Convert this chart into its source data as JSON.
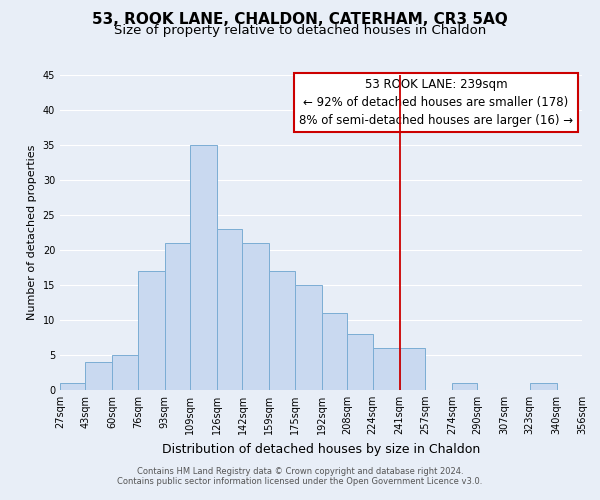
{
  "title": "53, ROOK LANE, CHALDON, CATERHAM, CR3 5AQ",
  "subtitle": "Size of property relative to detached houses in Chaldon",
  "xlabel": "Distribution of detached houses by size in Chaldon",
  "ylabel": "Number of detached properties",
  "bar_edges": [
    27,
    43,
    60,
    76,
    93,
    109,
    126,
    142,
    159,
    175,
    192,
    208,
    224,
    241,
    257,
    274,
    290,
    307,
    323,
    340,
    356
  ],
  "bar_heights": [
    1,
    4,
    5,
    17,
    21,
    35,
    23,
    21,
    17,
    15,
    11,
    8,
    6,
    6,
    0,
    1,
    0,
    0,
    1,
    0
  ],
  "bar_color": "#c9d9f0",
  "bar_edgecolor": "#7badd4",
  "vline_x": 241,
  "vline_color": "#cc0000",
  "annotation_title": "53 ROOK LANE: 239sqm",
  "annotation_line1": "← 92% of detached houses are smaller (178)",
  "annotation_line2": "8% of semi-detached houses are larger (16) →",
  "annotation_fontsize": 8.5,
  "tick_labels": [
    "27sqm",
    "43sqm",
    "60sqm",
    "76sqm",
    "93sqm",
    "109sqm",
    "126sqm",
    "142sqm",
    "159sqm",
    "175sqm",
    "192sqm",
    "208sqm",
    "224sqm",
    "241sqm",
    "257sqm",
    "274sqm",
    "290sqm",
    "307sqm",
    "323sqm",
    "340sqm",
    "356sqm"
  ],
  "ylim": [
    0,
    45
  ],
  "yticks": [
    0,
    5,
    10,
    15,
    20,
    25,
    30,
    35,
    40,
    45
  ],
  "grid_color": "#ffffff",
  "bg_color": "#e8eef7",
  "footer1": "Contains HM Land Registry data © Crown copyright and database right 2024.",
  "footer2": "Contains public sector information licensed under the Open Government Licence v3.0.",
  "title_fontsize": 11,
  "subtitle_fontsize": 9.5,
  "xlabel_fontsize": 9,
  "ylabel_fontsize": 8,
  "tick_fontsize": 7,
  "footer_fontsize": 6
}
